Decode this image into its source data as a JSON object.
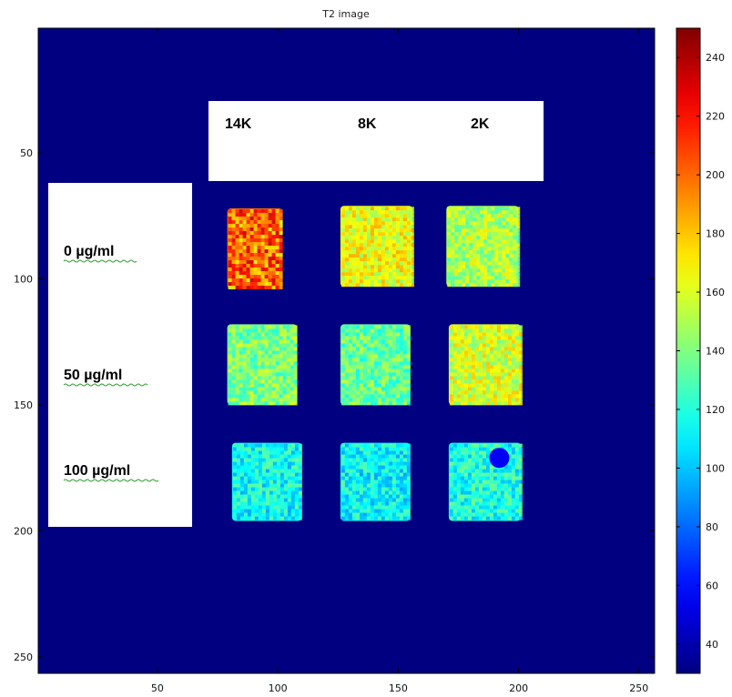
{
  "chart_data": {
    "type": "heatmap",
    "title": "T2 image",
    "xlabel": "",
    "ylabel": "",
    "xlim": [
      0.5,
      256.5
    ],
    "ylim": [
      0.5,
      256.5
    ],
    "x_ticks": [
      50,
      100,
      150,
      200,
      250
    ],
    "y_ticks": [
      50,
      100,
      150,
      200,
      250
    ],
    "colormap": "jet",
    "colorbar": {
      "clim": [
        30,
        250
      ],
      "ticks": [
        40,
        60,
        80,
        100,
        120,
        140,
        160,
        180,
        200,
        220,
        240
      ]
    },
    "background_value": 30,
    "column_labels": [
      "14K",
      "8K",
      "2K"
    ],
    "row_labels": [
      "0 µg/ml",
      "50 µg/ml",
      "100 µg/ml"
    ],
    "wells": [
      {
        "column": "14K",
        "row": "0 µg/ml",
        "x": [
          79,
          102
        ],
        "y": [
          72,
          104
        ],
        "mean_value": 200
      },
      {
        "column": "8K",
        "row": "0 µg/ml",
        "x": [
          126,
          156
        ],
        "y": [
          71,
          103
        ],
        "mean_value": 165
      },
      {
        "column": "2K",
        "row": "0 µg/ml",
        "x": [
          170,
          200
        ],
        "y": [
          71,
          103
        ],
        "mean_value": 150
      },
      {
        "column": "14K",
        "row": "50 µg/ml",
        "x": [
          79,
          108
        ],
        "y": [
          118,
          150
        ],
        "mean_value": 140
      },
      {
        "column": "8K",
        "row": "50 µg/ml",
        "x": [
          126,
          155
        ],
        "y": [
          118,
          150
        ],
        "mean_value": 135
      },
      {
        "column": "2K",
        "row": "50 µg/ml",
        "x": [
          171,
          201
        ],
        "y": [
          118,
          150
        ],
        "mean_value": 158
      },
      {
        "column": "14K",
        "row": "100 µg/ml",
        "x": [
          81,
          110
        ],
        "y": [
          165,
          196
        ],
        "mean_value": 115
      },
      {
        "column": "8K",
        "row": "100 µg/ml",
        "x": [
          126,
          155
        ],
        "y": [
          165,
          196
        ],
        "mean_value": 112
      },
      {
        "column": "2K",
        "row": "100 µg/ml",
        "x": [
          171,
          201
        ],
        "y": [
          165,
          196
        ],
        "mean_value": 118
      }
    ],
    "dark_spot": {
      "x": 192,
      "y": 171,
      "value": 55
    }
  }
}
